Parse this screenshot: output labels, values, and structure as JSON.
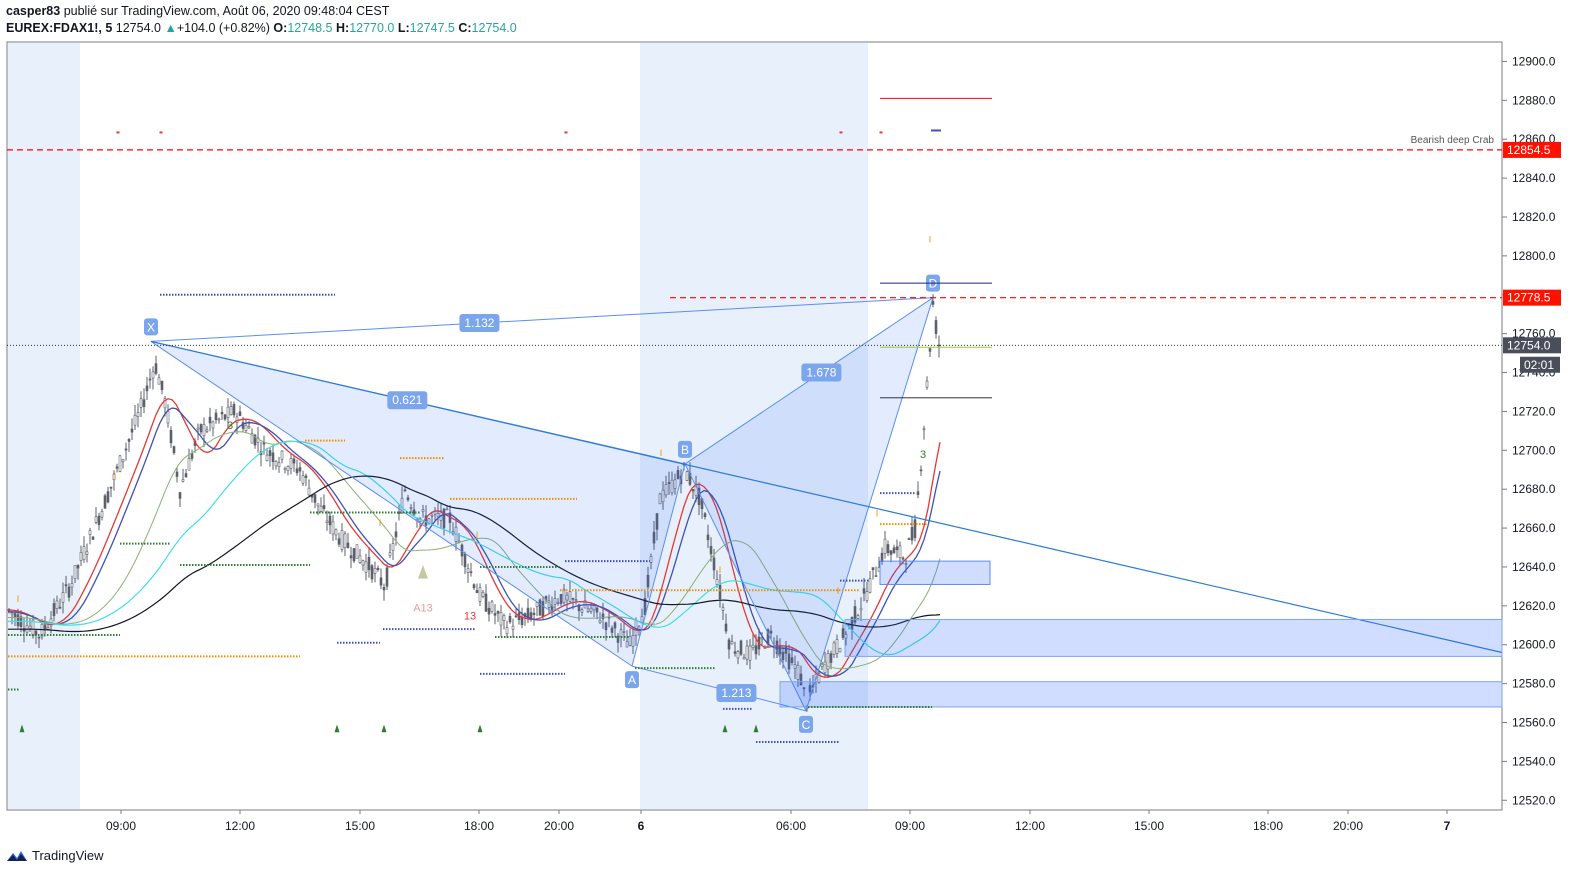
{
  "header": {
    "line1_user": "casper83",
    "line1_rest": " publié sur TradingView.com, Août 06, 2020 09:48:04 CEST",
    "symbol": "EUREX:FDAX1!, 5",
    "last": "12754.0",
    "change": "+104.0 (+0.82%)",
    "o_label": "O:",
    "o_val": "12748.5",
    "h_label": "H:",
    "h_val": "12770.0",
    "l_label": "L:",
    "l_val": "12747.5",
    "c_label": "C:",
    "c_val": "12754.0"
  },
  "footer": {
    "brand": "TradingView"
  },
  "colors": {
    "candle": "#5d606b",
    "pattern_fill": "#2962ff",
    "pattern_line": "#5b8ef0",
    "red_level": "#ff0000",
    "price_tag_red": "#ff1100",
    "price_tag_grey": "#4a4e5a"
  },
  "chart_data": {
    "type": "candlestick",
    "ylim": [
      12515,
      12910
    ],
    "y_ticks": [
      "12900.0",
      "12880.0",
      "12860.0",
      "12840.0",
      "12820.0",
      "12800.0",
      "12780.0",
      "12760.0",
      "12740.0",
      "12720.0",
      "12700.0",
      "12680.0",
      "12660.0",
      "12640.0",
      "12620.0",
      "12600.0",
      "12580.0",
      "12560.0",
      "12540.0",
      "12520.0"
    ],
    "x_ticks": [
      "09:00",
      "12:00",
      "15:00",
      "18:00",
      "20:00",
      "6",
      "06:00",
      "09:00",
      "12:00",
      "15:00",
      "18:00",
      "20:00",
      "7"
    ],
    "price_labels": [
      {
        "value": "12854.5",
        "style": "red"
      },
      {
        "value": "12778.5",
        "style": "red"
      },
      {
        "value": "12754.0",
        "style": "grey"
      },
      {
        "value": "02:01",
        "style": "grey"
      }
    ],
    "harmonic_pattern": {
      "name": "Bearish deep Crab",
      "points": [
        {
          "label": "X",
          "price": 12756
        },
        {
          "label": "A",
          "price": 12589
        },
        {
          "label": "B",
          "price": 12693
        },
        {
          "label": "C",
          "price": 12566
        },
        {
          "label": "D",
          "price": 12778.5
        }
      ],
      "ratios": [
        "1.132",
        "0.621",
        "1.678",
        "1.213"
      ]
    },
    "annotations": [
      "A13",
      "13",
      "3",
      "3",
      "3"
    ]
  }
}
